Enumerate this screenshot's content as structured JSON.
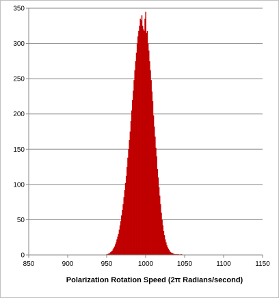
{
  "chart_data": {
    "type": "bar",
    "title": "",
    "xlabel": "Polarization Rotation Speed (2π Radians/second)",
    "ylabel": "",
    "xlim": [
      850,
      1150
    ],
    "ylim": [
      0,
      350
    ],
    "x_ticks": [
      850,
      900,
      950,
      1000,
      1050,
      1100,
      1150
    ],
    "y_ticks": [
      0,
      50,
      100,
      150,
      200,
      250,
      300,
      350
    ],
    "grid": "horizontal",
    "legend": "none",
    "bar_color": "#C00000",
    "bin_width": 1,
    "series": [
      {
        "x": [
          950,
          951,
          952,
          953,
          954,
          955,
          956,
          957,
          958,
          959,
          960,
          961,
          962,
          963,
          964,
          965,
          966,
          967,
          968,
          969,
          970,
          971,
          972,
          973,
          974,
          975,
          976,
          977,
          978,
          979,
          980,
          981,
          982,
          983,
          984,
          985,
          986,
          987,
          988,
          989,
          990,
          991,
          992,
          993,
          994,
          995,
          996,
          997,
          998,
          999,
          1000,
          1001,
          1002,
          1003,
          1004,
          1005,
          1006,
          1007,
          1008,
          1009,
          1010,
          1011,
          1012,
          1013,
          1014,
          1015,
          1016,
          1017,
          1018,
          1019,
          1020,
          1021,
          1022,
          1023,
          1024,
          1025,
          1026,
          1027,
          1028,
          1029,
          1030,
          1031,
          1032,
          1033,
          1034,
          1035,
          1036,
          1037,
          1038,
          1039,
          1040,
          1041,
          1042,
          1043,
          1044,
          1045,
          1046,
          1047,
          1048,
          1049,
          1050
        ],
        "values": [
          1,
          1,
          2,
          2,
          3,
          4,
          5,
          6,
          8,
          10,
          12,
          15,
          18,
          22,
          26,
          30,
          36,
          42,
          48,
          56,
          64,
          72,
          82,
          92,
          102,
          112,
          125,
          138,
          150,
          163,
          175,
          190,
          205,
          220,
          233,
          248,
          262,
          275,
          287,
          300,
          310,
          318,
          325,
          335,
          333,
          340,
          325,
          320,
          318,
          335,
          345,
          315,
          318,
          300,
          290,
          275,
          262,
          248,
          232,
          218,
          198,
          182,
          168,
          152,
          140,
          122,
          110,
          96,
          84,
          72,
          60,
          50,
          42,
          34,
          28,
          22,
          18,
          14,
          11,
          9,
          7,
          5,
          4,
          3,
          3,
          2,
          2,
          1,
          1,
          1,
          1,
          1,
          1,
          0,
          1,
          0,
          1,
          0,
          0,
          0,
          0
        ]
      }
    ]
  }
}
